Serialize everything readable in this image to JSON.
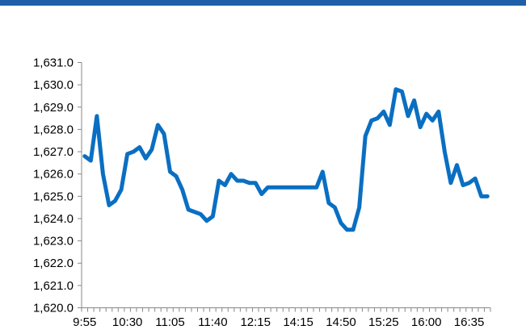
{
  "colors": {
    "top_bar": "#1f5fa8",
    "line": "#0a6fc2",
    "axis": "#888888"
  },
  "chart_data": {
    "type": "line",
    "title": "",
    "xlabel": "",
    "ylabel": "",
    "ylim": [
      1620.0,
      1631.0
    ],
    "y_ticks": [
      "1,620.0",
      "1,621.0",
      "1,622.0",
      "1,623.0",
      "1,624.0",
      "1,625.0",
      "1,626.0",
      "1,627.0",
      "1,628.0",
      "1,629.0",
      "1,630.0",
      "1,631.0"
    ],
    "x_tick_labels": [
      "9:55",
      "10:30",
      "11:05",
      "11:40",
      "12:15",
      "14:15",
      "14:50",
      "15:25",
      "16:00",
      "16:35"
    ],
    "grid": false,
    "legend": "none",
    "series": [
      {
        "values": [
          1626.8,
          1626.6,
          1628.6,
          1626.0,
          1624.6,
          1624.8,
          1625.3,
          1626.9,
          1627.0,
          1627.2,
          1626.7,
          1627.1,
          1628.2,
          1627.8,
          1626.1,
          1625.9,
          1625.3,
          1624.4,
          1624.3,
          1624.2,
          1623.9,
          1624.1,
          1625.7,
          1625.5,
          1626.0,
          1625.7,
          1625.7,
          1625.6,
          1625.6,
          1625.1,
          1625.4,
          1625.4,
          1625.4,
          1625.4,
          1625.4,
          1625.4,
          1625.4,
          1625.4,
          1625.4,
          1626.1,
          1624.7,
          1624.5,
          1623.8,
          1623.5,
          1623.5,
          1624.5,
          1627.7,
          1628.4,
          1628.5,
          1628.8,
          1628.2,
          1629.8,
          1629.7,
          1628.6,
          1629.3,
          1628.1,
          1628.7,
          1628.4,
          1628.8,
          1627.0,
          1625.6,
          1626.4,
          1625.5,
          1625.6,
          1625.8,
          1625.0,
          1625.0
        ]
      }
    ]
  }
}
